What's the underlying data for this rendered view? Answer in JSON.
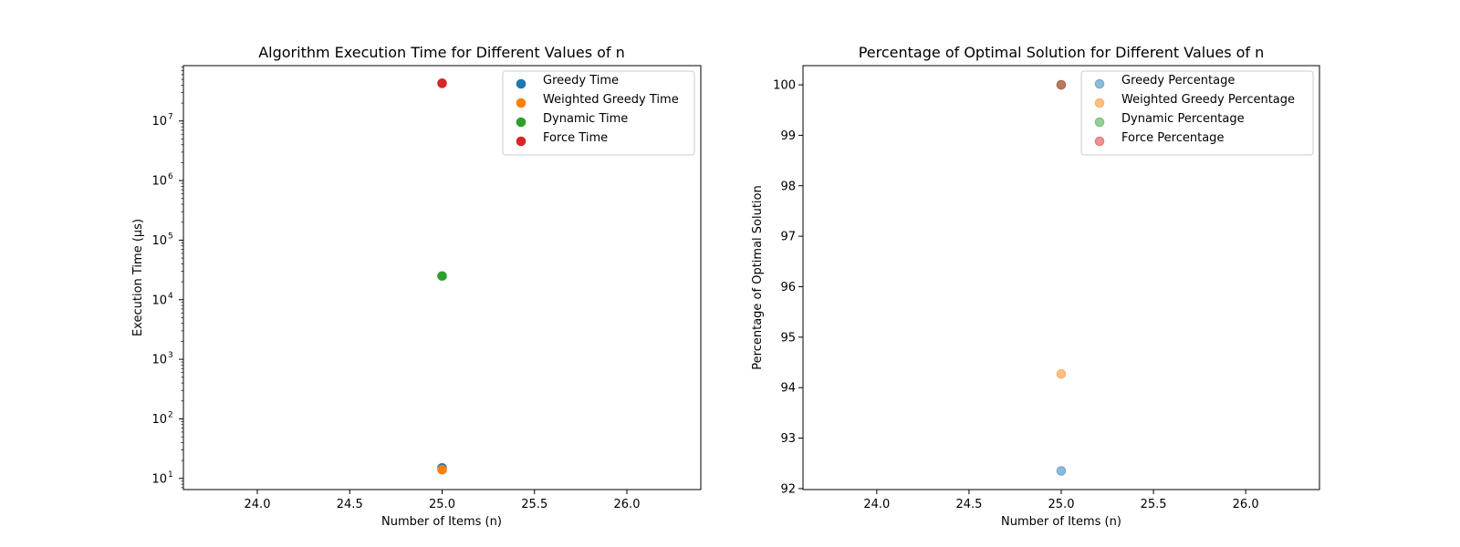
{
  "figure": {
    "background": "#ffffff"
  },
  "chart_data": [
    {
      "type": "scatter",
      "title": "Algorithm Execution Time for Different Values of n",
      "xlabel": "Number of Items (n)",
      "ylabel": "Execution Time (µs)",
      "xlim": [
        23.6,
        26.4
      ],
      "xticks": [
        24.0,
        24.5,
        25.0,
        25.5,
        26.0
      ],
      "xtick_labels": [
        "24.0",
        "24.5",
        "25.0",
        "25.5",
        "26.0"
      ],
      "yscale": "log",
      "ylim": [
        6.5,
        85000000
      ],
      "ytick_exponents": [
        1,
        2,
        3,
        4,
        5,
        6,
        7
      ],
      "ytick_base": "10",
      "grid": false,
      "legend_position": "top-right",
      "series": [
        {
          "name": "Greedy Time",
          "color": "#1f77b4",
          "alpha": 1,
          "x": [
            25
          ],
          "y": [
            15
          ]
        },
        {
          "name": "Weighted Greedy Time",
          "color": "#ff7f0e",
          "alpha": 1,
          "x": [
            25
          ],
          "y": [
            14
          ]
        },
        {
          "name": "Dynamic Time",
          "color": "#2ca02c",
          "alpha": 1,
          "x": [
            25
          ],
          "y": [
            25000
          ]
        },
        {
          "name": "Force Time",
          "color": "#d62728",
          "alpha": 1,
          "x": [
            25
          ],
          "y": [
            43000000
          ]
        }
      ]
    },
    {
      "type": "scatter",
      "title": "Percentage of Optimal Solution for Different Values of n",
      "xlabel": "Number of Items (n)",
      "ylabel": "Percentage of Optimal Solution",
      "xlim": [
        23.6,
        26.4
      ],
      "xticks": [
        24.0,
        24.5,
        25.0,
        25.5,
        26.0
      ],
      "xtick_labels": [
        "24.0",
        "24.5",
        "25.0",
        "25.5",
        "26.0"
      ],
      "yscale": "linear",
      "ylim": [
        91.98,
        100.38
      ],
      "yticks": [
        92,
        93,
        94,
        95,
        96,
        97,
        98,
        99,
        100
      ],
      "ytick_labels": [
        "92",
        "93",
        "94",
        "95",
        "96",
        "97",
        "98",
        "99",
        "100"
      ],
      "grid": false,
      "legend_position": "top-right",
      "series": [
        {
          "name": "Greedy Percentage",
          "color": "#1f77b4",
          "alpha": 0.5,
          "x": [
            25
          ],
          "y": [
            92.35
          ]
        },
        {
          "name": "Weighted Greedy Percentage",
          "color": "#ff7f0e",
          "alpha": 0.5,
          "x": [
            25
          ],
          "y": [
            94.27
          ]
        },
        {
          "name": "Dynamic Percentage",
          "color": "#2ca02c",
          "alpha": 0.5,
          "x": [
            25
          ],
          "y": [
            100
          ]
        },
        {
          "name": "Force Percentage",
          "color": "#d62728",
          "alpha": 0.5,
          "x": [
            25
          ],
          "y": [
            100
          ]
        }
      ]
    }
  ]
}
